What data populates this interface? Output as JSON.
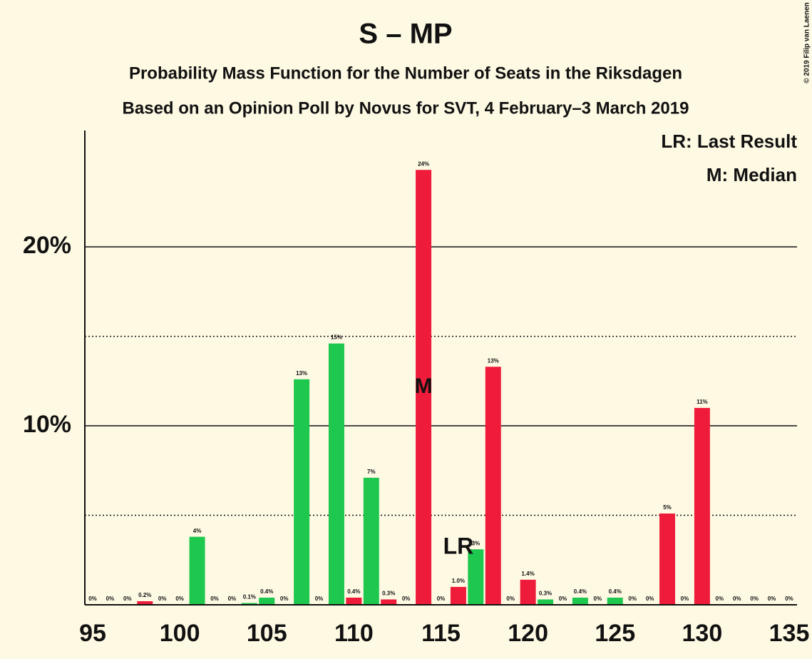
{
  "chart_data": {
    "type": "bar",
    "title": "S – MP",
    "subtitle": "Probability Mass Function for the Number of Seats in the Riksdagen",
    "subtitle2": "Based on an Opinion Poll by Novus for SVT, 4 February–3 March 2019",
    "copyright": "© 2019 Filip van Laenen",
    "legend": [
      "LR: Last Result",
      "M: Median"
    ],
    "legend_corner": "top-right",
    "x": [
      95,
      96,
      97,
      98,
      99,
      100,
      101,
      102,
      103,
      104,
      105,
      106,
      107,
      108,
      109,
      110,
      111,
      112,
      113,
      114,
      115,
      116,
      117,
      118,
      119,
      120,
      121,
      122,
      123,
      124,
      125,
      126,
      127,
      128,
      129,
      130,
      131,
      132,
      133,
      134,
      135
    ],
    "values": [
      0,
      0,
      0,
      0.2,
      0,
      0,
      3.8,
      0,
      0,
      0.1,
      0.4,
      0,
      12.6,
      0,
      14.6,
      0.4,
      7.1,
      0.3,
      0,
      24.3,
      0,
      1.0,
      3.1,
      13.3,
      0,
      1.4,
      0.3,
      0,
      0.4,
      0,
      0.4,
      0,
      0,
      5.1,
      0,
      11.0,
      0,
      0,
      0,
      0,
      0
    ],
    "value_labels": [
      "0%",
      "0%",
      "0%",
      "0.2%",
      "0%",
      "0%",
      "4%",
      "0%",
      "0%",
      "0.1%",
      "0.4%",
      "0%",
      "13%",
      "0%",
      "15%",
      "0.4%",
      "7%",
      "0.3%",
      "0%",
      "24%",
      "0%",
      "1.0%",
      "3%",
      "13%",
      "0%",
      "1.4%",
      "0.3%",
      "0%",
      "0.4%",
      "0%",
      "0.4%",
      "0%",
      "0%",
      "5%",
      "0%",
      "11%",
      "0%",
      "0%",
      "0%",
      "0%",
      "0%"
    ],
    "colors": [
      "#1ec74e",
      "#1ec74e",
      "#1ec74e",
      "#ee1c3a",
      "#1ec74e",
      "#1ec74e",
      "#1ec74e",
      "#1ec74e",
      "#1ec74e",
      "#1ec74e",
      "#1ec74e",
      "#1ec74e",
      "#1ec74e",
      "#1ec74e",
      "#1ec74e",
      "#ee1c3a",
      "#1ec74e",
      "#ee1c3a",
      "#1ec74e",
      "#ee1c3a",
      "#1ec74e",
      "#ee1c3a",
      "#1ec74e",
      "#ee1c3a",
      "#1ec74e",
      "#ee1c3a",
      "#1ec74e",
      "#1ec74e",
      "#1ec74e",
      "#1ec74e",
      "#1ec74e",
      "#1ec74e",
      "#1ec74e",
      "#ee1c3a",
      "#1ec74e",
      "#ee1c3a",
      "#1ec74e",
      "#1ec74e",
      "#1ec74e",
      "#1ec74e",
      "#1ec74e"
    ],
    "last_result": {
      "label": "LR",
      "x": 116
    },
    "median": {
      "label": "M",
      "x": 114
    },
    "xlim": [
      94.55,
      135.45
    ],
    "xticks": [
      95,
      100,
      105,
      110,
      115,
      120,
      125,
      130,
      135
    ],
    "ylim": [
      0,
      26.5
    ],
    "yticks": [
      {
        "value": 10,
        "label": "10%"
      },
      {
        "value": 20,
        "label": "20%"
      }
    ],
    "minor_gridlines": [
      5,
      15
    ],
    "grid": true
  }
}
